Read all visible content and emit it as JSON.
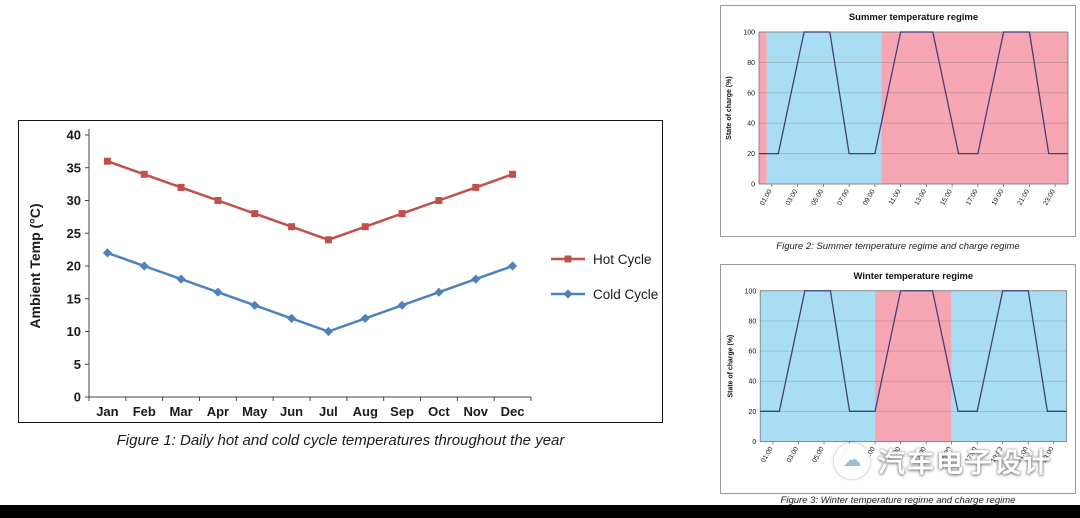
{
  "colors": {
    "hot_cycle": "#c0504d",
    "cold_cycle": "#4f81bd",
    "soc_line": "#3f3f78",
    "band_blue": "#a9ddf3",
    "band_pink": "#f6a6b3"
  },
  "figures": {
    "fig1_caption": "Figure 1: Daily hot and cold cycle temperatures throughout the year",
    "fig2_caption": "Figure 2: Summer temperature regime and charge regime",
    "fig3_caption": "Figure 3: Winter temperature regime and charge regime"
  },
  "watermark": {
    "text": "汽车电子设计"
  },
  "chart_data": [
    {
      "id": "fig1",
      "type": "line",
      "title": "",
      "categories": [
        "Jan",
        "Feb",
        "Mar",
        "Apr",
        "May",
        "Jun",
        "Jul",
        "Aug",
        "Sep",
        "Oct",
        "Nov",
        "Dec"
      ],
      "series": [
        {
          "name": "Hot Cycle",
          "color_key": "hot_cycle",
          "marker": "square",
          "values": [
            36,
            34,
            32,
            30,
            28,
            26,
            24,
            26,
            28,
            30,
            32,
            34
          ]
        },
        {
          "name": "Cold Cycle",
          "color_key": "cold_cycle",
          "marker": "diamond",
          "values": [
            22,
            20,
            18,
            16,
            14,
            12,
            10,
            12,
            14,
            16,
            18,
            20
          ]
        }
      ],
      "xlabel": "",
      "ylabel": "Ambient Temp (°C)",
      "ylim": [
        0,
        40
      ],
      "ystep": 5,
      "grid": false,
      "legend_position": "right"
    },
    {
      "id": "fig2",
      "type": "line",
      "title": "Summer temperature regime",
      "ylabel": "State of charge (%)",
      "xlim": [
        0,
        24
      ],
      "ylim": [
        0,
        100
      ],
      "ystep": 20,
      "grid": true,
      "line_color_key": "soc_line",
      "xtick_hours": [
        1,
        3,
        5,
        7,
        9,
        11,
        13,
        15,
        17,
        19,
        21,
        23
      ],
      "xtick_labels": [
        "01:00",
        "03:00",
        "05:00",
        "07:00",
        "09:00",
        "11:00",
        "13:00",
        "15:00",
        "17:00",
        "19:00",
        "21:00",
        "23:00"
      ],
      "bands": [
        {
          "from": 0,
          "to": 0.6,
          "color_key": "band_pink"
        },
        {
          "from": 0.6,
          "to": 9.5,
          "color_key": "band_blue"
        },
        {
          "from": 9.5,
          "to": 24,
          "color_key": "band_pink"
        }
      ],
      "points": [
        [
          0,
          20
        ],
        [
          1.5,
          20
        ],
        [
          3.5,
          100
        ],
        [
          5.5,
          100
        ],
        [
          7,
          20
        ],
        [
          9,
          20
        ],
        [
          11,
          100
        ],
        [
          13.5,
          100
        ],
        [
          15.5,
          20
        ],
        [
          17,
          20
        ],
        [
          19,
          100
        ],
        [
          21,
          100
        ],
        [
          22.5,
          20
        ],
        [
          24,
          20
        ]
      ]
    },
    {
      "id": "fig3",
      "type": "line",
      "title": "Winter temperature regime",
      "ylabel": "State of charge (%)",
      "xlim": [
        0,
        24
      ],
      "ylim": [
        0,
        100
      ],
      "ystep": 20,
      "grid": true,
      "line_color_key": "soc_line",
      "xtick_hours": [
        1,
        3,
        5,
        7,
        9,
        11,
        13,
        15,
        17,
        19,
        21,
        23
      ],
      "xtick_labels": [
        "01:00",
        "03:00",
        "05:00",
        "07:00",
        "09:00",
        "11:00",
        "13:00",
        "15:00",
        "17:00",
        "19:00",
        "21:00",
        "23:00"
      ],
      "bands": [
        {
          "from": 0,
          "to": 9,
          "color_key": "band_blue"
        },
        {
          "from": 9,
          "to": 15,
          "color_key": "band_pink"
        },
        {
          "from": 15,
          "to": 24,
          "color_key": "band_blue"
        }
      ],
      "points": [
        [
          0,
          20
        ],
        [
          1.5,
          20
        ],
        [
          3.5,
          100
        ],
        [
          5.5,
          100
        ],
        [
          7,
          20
        ],
        [
          9,
          20
        ],
        [
          11,
          100
        ],
        [
          13.5,
          100
        ],
        [
          15.5,
          20
        ],
        [
          17,
          20
        ],
        [
          19,
          100
        ],
        [
          21,
          100
        ],
        [
          22.5,
          20
        ],
        [
          24,
          20
        ]
      ]
    }
  ]
}
